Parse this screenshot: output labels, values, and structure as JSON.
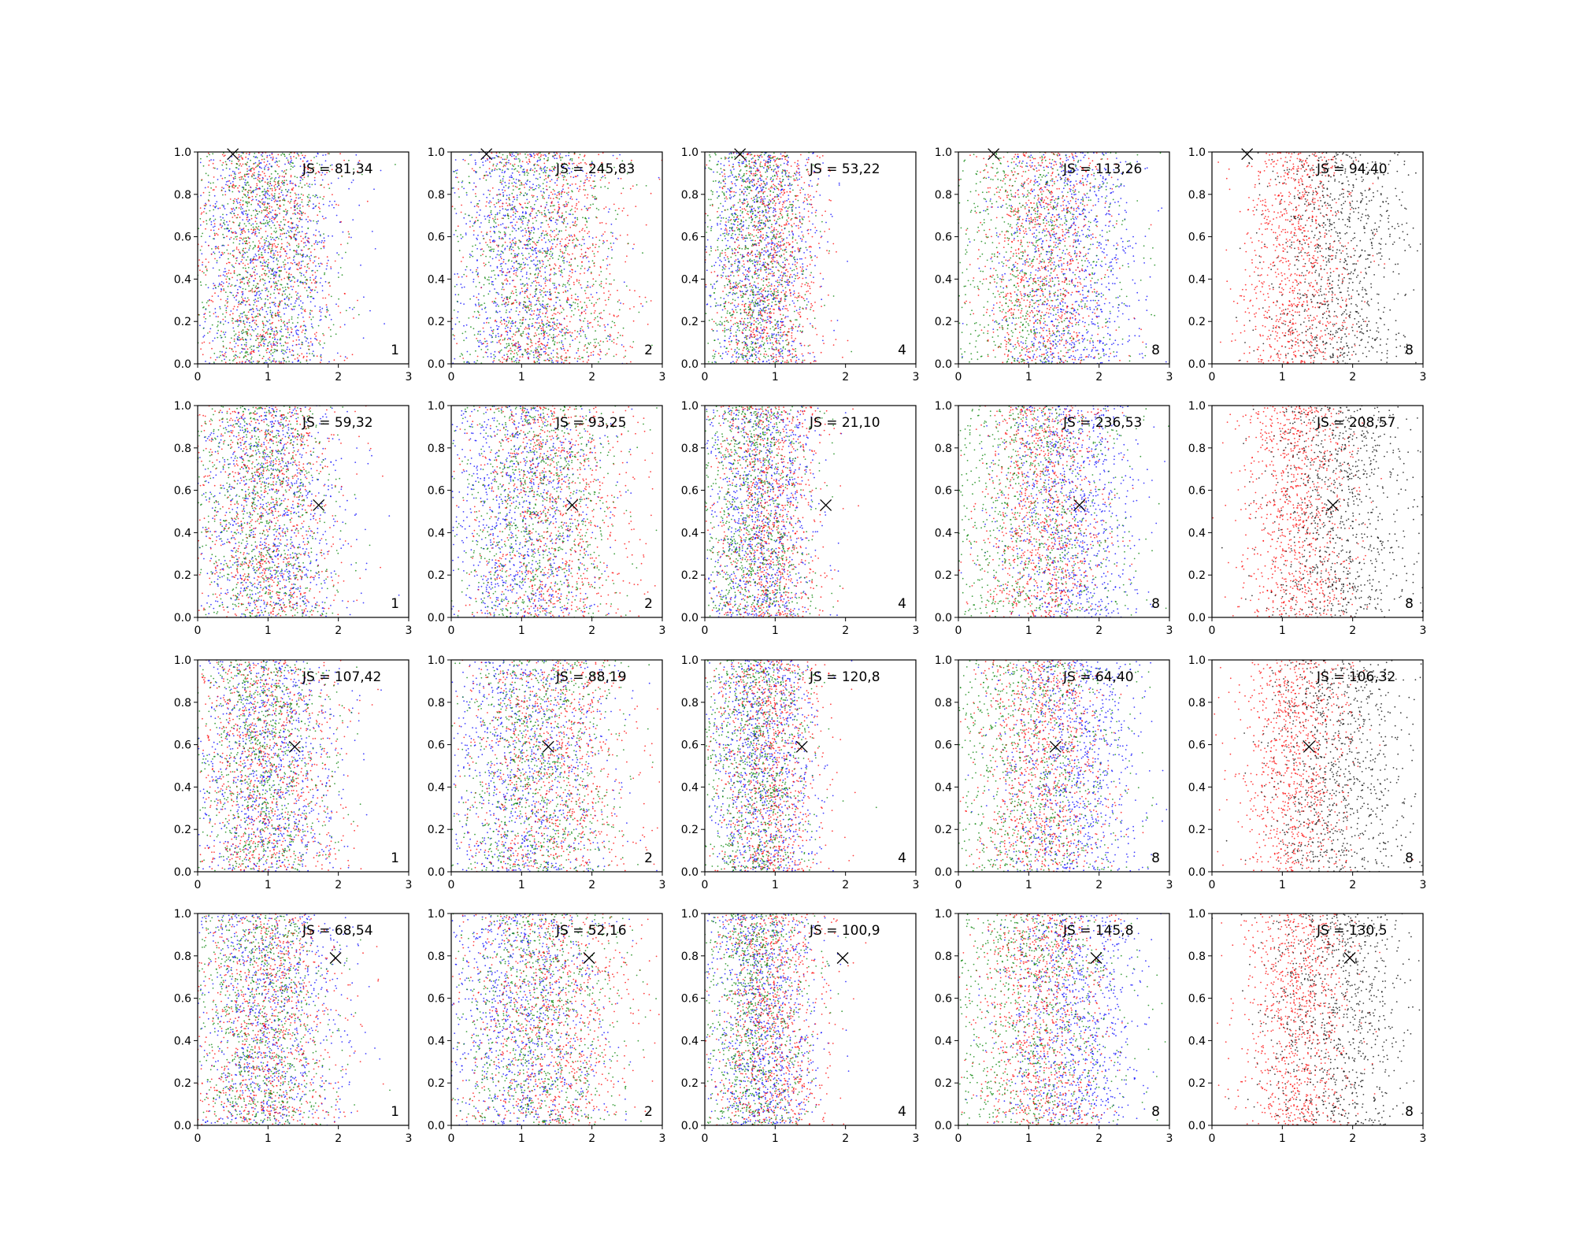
{
  "chart_data": {
    "type": "scatter",
    "layout": {
      "rows": 4,
      "cols": 5
    },
    "xlim": [
      0,
      3
    ],
    "ylim": [
      0,
      1
    ],
    "xticks": [
      "0",
      "1",
      "2",
      "3"
    ],
    "yticks": [
      "0.0",
      "0.2",
      "0.4",
      "0.6",
      "0.8",
      "1.0"
    ],
    "grid": false,
    "colors": {
      "blue": "#0000ff",
      "red": "#ff0000",
      "green": "#008000",
      "black": "#000000"
    },
    "columns": [
      {
        "label": "1",
        "series": [
          {
            "color": "#0000ff",
            "x_center": 1.0,
            "x_spread": 0.55
          },
          {
            "color": "#ff0000",
            "x_center": 0.95,
            "x_spread": 0.55
          },
          {
            "color": "#008000",
            "x_center": 0.9,
            "x_spread": 0.5
          }
        ]
      },
      {
        "label": "2",
        "series": [
          {
            "color": "#0000ff",
            "x_center": 1.0,
            "x_spread": 0.6
          },
          {
            "color": "#ff0000",
            "x_center": 1.4,
            "x_spread": 0.6
          },
          {
            "color": "#008000",
            "x_center": 1.2,
            "x_spread": 0.6
          }
        ]
      },
      {
        "label": "4",
        "series": [
          {
            "color": "#0000ff",
            "x_center": 0.8,
            "x_spread": 0.4
          },
          {
            "color": "#ff0000",
            "x_center": 0.9,
            "x_spread": 0.4
          },
          {
            "color": "#008000",
            "x_center": 0.7,
            "x_spread": 0.4
          }
        ]
      },
      {
        "label": "8",
        "series": [
          {
            "color": "#0000ff",
            "x_center": 1.6,
            "x_spread": 0.5
          },
          {
            "color": "#ff0000",
            "x_center": 1.2,
            "x_spread": 0.45
          },
          {
            "color": "#008000",
            "x_center": 1.0,
            "x_spread": 0.7
          }
        ]
      },
      {
        "label": "8",
        "series": [
          {
            "color": "#ff0000",
            "x_center": 1.2,
            "x_spread": 0.4
          },
          {
            "color": "#000000",
            "x_center": 1.8,
            "x_spread": 0.5
          }
        ]
      }
    ],
    "rows": [
      {
        "marker": {
          "x": 0.5,
          "y": 0.99
        },
        "js": [
          "JS = 81,34",
          "JS = 245,83",
          "JS = 53,22",
          "JS = 113,26",
          "JS = 94,40"
        ]
      },
      {
        "marker": {
          "x": 1.72,
          "y": 0.53
        },
        "js": [
          "JS = 59,32",
          "JS = 93,25",
          "JS = 21,10",
          "JS = 236,53",
          "JS = 208,57"
        ]
      },
      {
        "marker": {
          "x": 1.38,
          "y": 0.59
        },
        "js": [
          "JS = 107,42",
          "JS = 88,19",
          "JS = 120,8",
          "JS = 64,40",
          "JS = 106,32"
        ]
      },
      {
        "marker": {
          "x": 1.96,
          "y": 0.79
        },
        "js": [
          "JS = 68,54",
          "JS = 52,16",
          "JS = 100,9",
          "JS = 145,8",
          "JS = 130,5"
        ]
      }
    ]
  }
}
